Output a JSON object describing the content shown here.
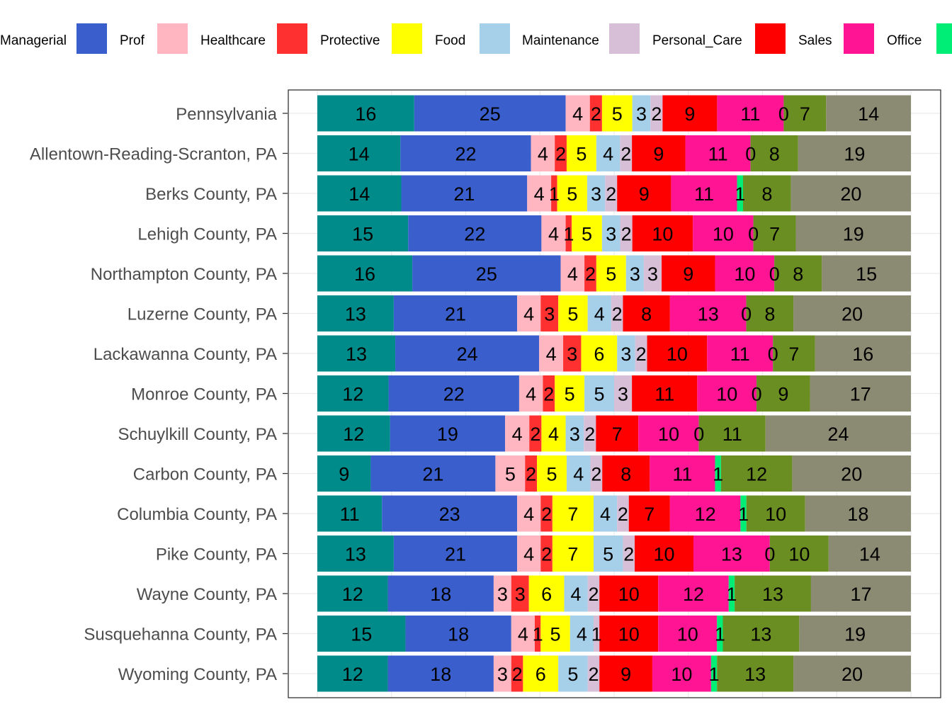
{
  "chart_data": {
    "type": "bar",
    "orientation": "horizontal",
    "stacked": true,
    "normalized_percent": true,
    "legend_position": "top",
    "grid": true,
    "categories": [
      "Pennsylvania",
      "Allentown-Reading-Scranton, PA",
      "Berks County, PA",
      "Lehigh County, PA",
      "Northampton County, PA",
      "Luzerne County, PA",
      "Lackawanna County, PA",
      "Monroe County, PA",
      "Schuylkill County, PA",
      "Carbon County, PA",
      "Columbia County, PA",
      "Pike County, PA",
      "Wayne County, PA",
      "Susquehanna County, PA",
      "Wyoming County, PA"
    ],
    "legend_visible": [
      "Managerial",
      "Prof",
      "Healthcare",
      "Protective",
      "Food",
      "Maintenance",
      "Personal_Care",
      "Sales",
      "Office"
    ],
    "series": [
      {
        "name": "Managerial",
        "color": "#008b8b",
        "values": [
          16,
          14,
          14,
          15,
          16,
          13,
          13,
          12,
          12,
          9,
          11,
          13,
          12,
          15,
          12
        ]
      },
      {
        "name": "Prof",
        "color": "#3a5fcd",
        "values": [
          25,
          22,
          21,
          22,
          25,
          21,
          24,
          22,
          19,
          21,
          23,
          21,
          18,
          18,
          18
        ]
      },
      {
        "name": "Healthcare",
        "color": "#ffb6c1",
        "values": [
          4,
          4,
          4,
          4,
          4,
          4,
          4,
          4,
          4,
          5,
          4,
          4,
          3,
          4,
          3
        ]
      },
      {
        "name": "Protective",
        "color": "#ff3030",
        "values": [
          2,
          2,
          1,
          1,
          2,
          3,
          3,
          2,
          2,
          2,
          2,
          2,
          3,
          1,
          2
        ]
      },
      {
        "name": "Food",
        "color": "#ffff00",
        "values": [
          5,
          5,
          5,
          5,
          5,
          5,
          6,
          5,
          4,
          5,
          7,
          7,
          6,
          5,
          6
        ]
      },
      {
        "name": "Maintenance",
        "color": "#a6cfe9",
        "values": [
          3,
          4,
          3,
          3,
          3,
          4,
          3,
          5,
          3,
          4,
          4,
          5,
          4,
          4,
          5
        ]
      },
      {
        "name": "Personal_Care",
        "color": "#d8bfd8",
        "values": [
          2,
          2,
          2,
          2,
          3,
          2,
          2,
          3,
          2,
          2,
          2,
          2,
          2,
          1,
          2
        ]
      },
      {
        "name": "Sales",
        "color": "#ff0000",
        "values": [
          9,
          9,
          9,
          10,
          9,
          8,
          10,
          11,
          7,
          8,
          7,
          10,
          10,
          10,
          9
        ]
      },
      {
        "name": "Office",
        "color": "#ff1493",
        "values": [
          11,
          11,
          11,
          10,
          10,
          13,
          11,
          10,
          10,
          11,
          12,
          13,
          12,
          10,
          10
        ]
      },
      {
        "color": "#00ee76",
        "values": [
          0,
          0,
          1,
          0,
          0,
          0,
          0,
          0,
          0,
          1,
          1,
          0,
          1,
          1,
          1
        ]
      },
      {
        "color": "#6b8e23",
        "values": [
          7,
          8,
          8,
          7,
          8,
          8,
          7,
          9,
          11,
          12,
          10,
          10,
          13,
          13,
          13
        ]
      },
      {
        "color": "#8b8b73",
        "values": [
          14,
          19,
          20,
          19,
          15,
          20,
          16,
          17,
          24,
          20,
          18,
          14,
          17,
          19,
          20
        ]
      }
    ]
  }
}
